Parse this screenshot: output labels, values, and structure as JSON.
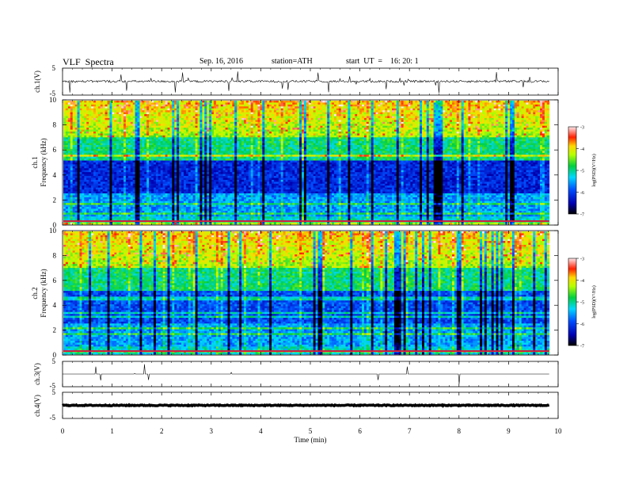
{
  "header": {
    "title": "VLF  Spectra",
    "date": "Sep. 16, 2016",
    "station": "station=ATH",
    "start": "start  UT  =    16: 20: 1"
  },
  "chart_data": [
    {
      "type": "line",
      "name": "ch1-waveform",
      "ylabel": "ch.1(V)",
      "ylim": [
        -5,
        5
      ],
      "yticks": [
        "5",
        "-5"
      ],
      "baseline": 0.1
    },
    {
      "type": "heatmap",
      "name": "ch1-spectrogram",
      "ylabel_line1": "ch.1",
      "ylabel_line2": "Frequency (kHz)",
      "ylim": [
        0,
        10
      ],
      "yticks": [
        "10",
        "8",
        "6",
        "4",
        "2",
        "0"
      ],
      "colorbar": {
        "label": "log(PSD)(V²/Hz)",
        "range": [
          -7,
          -3
        ],
        "ticks": [
          "-3",
          "-4",
          "-5",
          "-6",
          "-7"
        ]
      }
    },
    {
      "type": "heatmap",
      "name": "ch2-spectrogram",
      "ylabel_line1": "ch.2",
      "ylabel_line2": "Frequency (kHz)",
      "ylim": [
        0,
        10
      ],
      "yticks": [
        "10",
        "8",
        "6",
        "4",
        "2",
        "0"
      ],
      "colorbar": {
        "label": "log(PSD)(V²/Hz)",
        "range": [
          -7,
          -3
        ],
        "ticks": [
          "-3",
          "-4",
          "-5",
          "-6",
          "-7"
        ]
      }
    },
    {
      "type": "line",
      "name": "ch3-waveform",
      "ylabel": "ch.3(V)",
      "ylim": [
        -5,
        5
      ],
      "yticks": [
        "5",
        "-5"
      ],
      "baseline": 0
    },
    {
      "type": "line",
      "name": "ch4-waveform",
      "ylabel": "ch.4(V)",
      "ylim": [
        -5,
        5
      ],
      "yticks": [
        "5",
        "-5"
      ],
      "baseline": 0
    }
  ],
  "xaxis": {
    "label": "Time  (min)",
    "range": [
      0,
      10
    ],
    "ticks": [
      "0",
      "1",
      "2",
      "3",
      "4",
      "5",
      "6",
      "7",
      "8",
      "9",
      "10"
    ],
    "data_end": 9.82
  }
}
